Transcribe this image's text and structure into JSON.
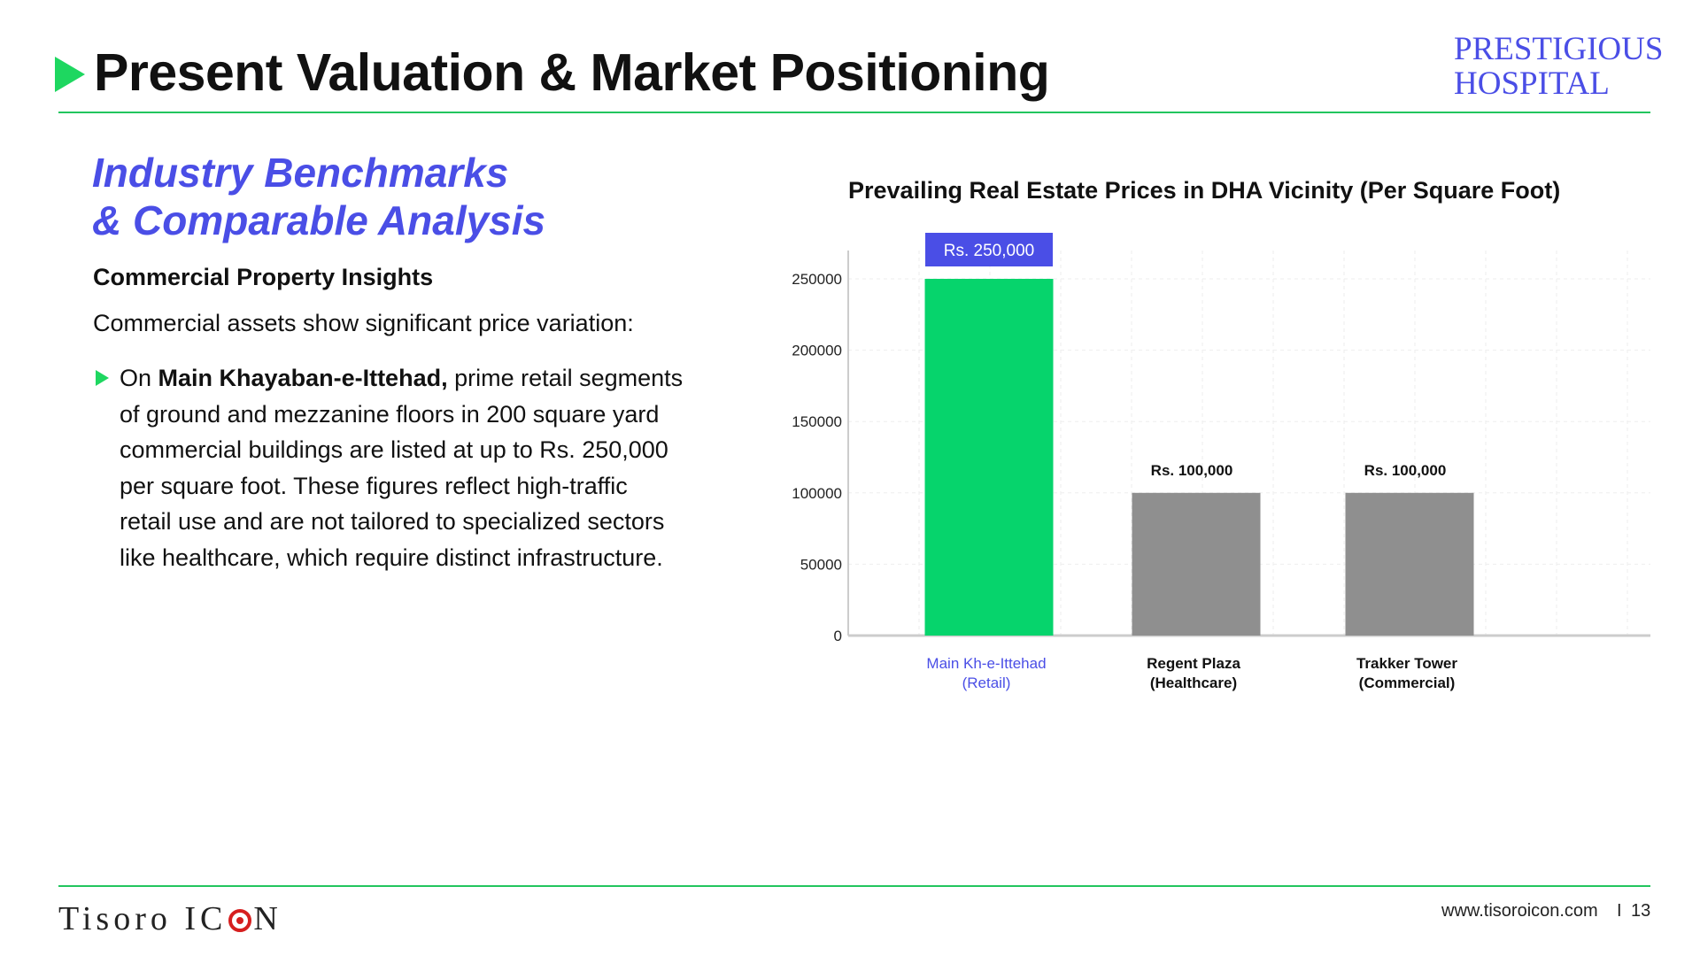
{
  "header": {
    "title": "Present Valuation & Market Positioning",
    "brand_line1": "PRESTIGIOUS",
    "brand_line2": "HOSPITAL"
  },
  "content": {
    "heading_line1": "Industry Benchmarks",
    "heading_line2": "& Comparable Analysis",
    "subheading": "Commercial Property Insights",
    "intro": "Commercial assets show significant price variation:",
    "bullet": {
      "prefix": "On ",
      "bold": "Main Khayaban-e-Ittehad,",
      "line1_rest": " prime retail segments",
      "line2": "of ground and mezzanine floors in 200 square yard",
      "line3": "commercial buildings are listed at up to Rs. 250,000",
      "line4": "per square foot. These figures reflect high-traffic",
      "line5": "retail use and are not tailored to specialized sectors",
      "line6": "like healthcare, which require distinct infrastructure."
    }
  },
  "chart_data": {
    "type": "bar",
    "title": "Prevailing Real Estate Prices in DHA Vicinity (Per Square Foot)",
    "categories": [
      [
        "Main Kh-e-Ittehad",
        "(Retail)"
      ],
      [
        "Regent Plaza",
        "(Healthcare)"
      ],
      [
        "Trakker Tower",
        "(Commercial)"
      ]
    ],
    "values": [
      250000,
      100000,
      100000
    ],
    "data_labels": [
      "Rs. 250,000",
      "Rs. 100,000",
      "Rs. 100,000"
    ],
    "bar_colors": [
      "#06d46c",
      "#8f8f8f",
      "#8f8f8f"
    ],
    "highlight_label_bg": "#4a4ee6",
    "highlight_category_color": "#4a4ee6",
    "yticks": [
      0,
      50000,
      100000,
      150000,
      200000,
      250000
    ],
    "ylim": [
      0,
      250000
    ],
    "grid": true,
    "xlabel": "",
    "ylabel": ""
  },
  "colors": {
    "accent_green": "#1ed760",
    "accent_blue": "#4a4ee6",
    "brand_red": "#d61f1f"
  },
  "footer": {
    "logo_part1": "Tisoro IC",
    "logo_part2": "N",
    "url": "www.tisoroicon.com",
    "separator": "I",
    "page_number": "13"
  }
}
